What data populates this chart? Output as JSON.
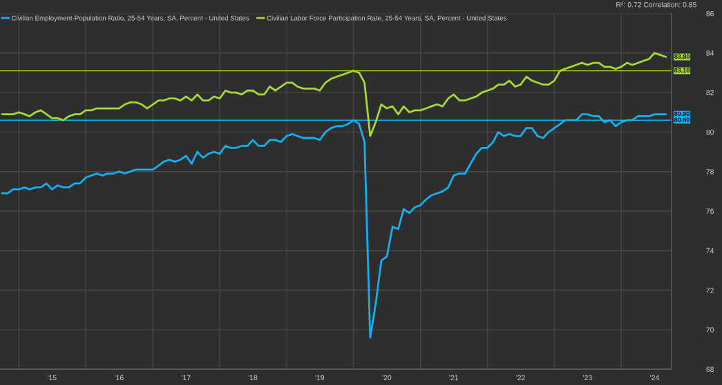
{
  "chart_data": {
    "type": "line",
    "x": [
      "2014-10",
      "2014-11",
      "2014-12",
      "2015-01",
      "2015-02",
      "2015-03",
      "2015-04",
      "2015-05",
      "2015-06",
      "2015-07",
      "2015-08",
      "2015-09",
      "2015-10",
      "2015-11",
      "2015-12",
      "2016-01",
      "2016-02",
      "2016-03",
      "2016-04",
      "2016-05",
      "2016-06",
      "2016-07",
      "2016-08",
      "2016-09",
      "2016-10",
      "2016-11",
      "2016-12",
      "2017-01",
      "2017-02",
      "2017-03",
      "2017-04",
      "2017-05",
      "2017-06",
      "2017-07",
      "2017-08",
      "2017-09",
      "2017-10",
      "2017-11",
      "2017-12",
      "2018-01",
      "2018-02",
      "2018-03",
      "2018-04",
      "2018-05",
      "2018-06",
      "2018-07",
      "2018-08",
      "2018-09",
      "2018-10",
      "2018-11",
      "2018-12",
      "2019-01",
      "2019-02",
      "2019-03",
      "2019-04",
      "2019-05",
      "2019-06",
      "2019-07",
      "2019-08",
      "2019-09",
      "2019-10",
      "2019-11",
      "2019-12",
      "2020-01",
      "2020-02",
      "2020-03",
      "2020-04",
      "2020-05",
      "2020-06",
      "2020-07",
      "2020-08",
      "2020-09",
      "2020-10",
      "2020-11",
      "2020-12",
      "2021-01",
      "2021-02",
      "2021-03",
      "2021-04",
      "2021-05",
      "2021-06",
      "2021-07",
      "2021-08",
      "2021-09",
      "2021-10",
      "2021-11",
      "2021-12",
      "2022-01",
      "2022-02",
      "2022-03",
      "2022-04",
      "2022-05",
      "2022-06",
      "2022-07",
      "2022-08",
      "2022-09",
      "2022-10",
      "2022-11",
      "2022-12",
      "2023-01",
      "2023-02",
      "2023-03",
      "2023-04",
      "2023-05",
      "2023-06",
      "2023-07",
      "2023-08",
      "2023-09",
      "2023-10",
      "2023-11",
      "2023-12",
      "2024-01",
      "2024-02",
      "2024-03",
      "2024-04",
      "2024-05",
      "2024-06",
      "2024-07",
      "2024-08",
      "2024-09"
    ],
    "xlim": [
      "2014-09-20",
      "2024-10-01"
    ],
    "xticks": [
      {
        "value": "2015-01",
        "label": null
      },
      {
        "value": "2015-07",
        "label": "'15"
      },
      {
        "value": "2016-01",
        "label": null
      },
      {
        "value": "2016-07",
        "label": "'16"
      },
      {
        "value": "2017-01",
        "label": null
      },
      {
        "value": "2017-07",
        "label": "'17"
      },
      {
        "value": "2018-01",
        "label": null
      },
      {
        "value": "2018-07",
        "label": "'18"
      },
      {
        "value": "2019-01",
        "label": null
      },
      {
        "value": "2019-07",
        "label": "'19"
      },
      {
        "value": "2020-01",
        "label": null
      },
      {
        "value": "2020-07",
        "label": "'20"
      },
      {
        "value": "2021-01",
        "label": null
      },
      {
        "value": "2021-07",
        "label": "'21"
      },
      {
        "value": "2022-01",
        "label": null
      },
      {
        "value": "2022-07",
        "label": "'22"
      },
      {
        "value": "2023-01",
        "label": null
      },
      {
        "value": "2023-07",
        "label": "'23"
      },
      {
        "value": "2024-01",
        "label": null
      },
      {
        "value": "2024-07",
        "label": "'24"
      }
    ],
    "ylim": [
      68,
      86
    ],
    "yticks": [
      68,
      70,
      72,
      74,
      76,
      78,
      80,
      82,
      84,
      86
    ],
    "grid": true,
    "legend": "top left",
    "annotations": [
      "R²: 0.72 Correlation: 0.85"
    ],
    "ref_lines": [
      {
        "axis": "y",
        "value": 83.1,
        "label": "83.10",
        "color": "#a6d937"
      },
      {
        "axis": "y",
        "value": 80.6,
        "label": "80.60",
        "color": "#13b1f2"
      }
    ],
    "series": [
      {
        "name": "Civilian Employment-Population Ratio, 25-54 Years, SA, Percent - United States",
        "color": "#13b1f2",
        "values": [
          76.9,
          76.9,
          77.1,
          77.1,
          77.2,
          77.1,
          77.2,
          77.2,
          77.4,
          77.1,
          77.3,
          77.2,
          77.2,
          77.4,
          77.4,
          77.7,
          77.8,
          77.9,
          77.8,
          77.9,
          77.9,
          78.0,
          77.9,
          78.0,
          78.1,
          78.1,
          78.1,
          78.1,
          78.3,
          78.5,
          78.6,
          78.5,
          78.6,
          78.8,
          78.4,
          79.0,
          78.7,
          78.9,
          79.0,
          78.9,
          79.3,
          79.2,
          79.2,
          79.3,
          79.3,
          79.6,
          79.3,
          79.3,
          79.6,
          79.6,
          79.5,
          79.8,
          79.9,
          79.8,
          79.7,
          79.7,
          79.7,
          79.6,
          80.0,
          80.2,
          80.3,
          80.3,
          80.4,
          80.6,
          80.4,
          79.5,
          69.6,
          71.3,
          73.5,
          73.7,
          75.2,
          75.1,
          76.1,
          75.9,
          76.2,
          76.3,
          76.6,
          76.8,
          76.9,
          77.0,
          77.2,
          77.8,
          77.9,
          77.9,
          78.4,
          78.9,
          79.2,
          79.2,
          79.5,
          80.0,
          79.8,
          79.9,
          79.8,
          79.8,
          80.2,
          80.2,
          79.8,
          79.7,
          80.0,
          80.2,
          80.4,
          80.6,
          80.6,
          80.6,
          80.9,
          80.9,
          80.8,
          80.8,
          80.5,
          80.6,
          80.3,
          80.5,
          80.6,
          80.6,
          80.8,
          80.8,
          80.8,
          80.9,
          80.9,
          80.9
        ],
        "value_labels": [
          null,
          null,
          null,
          null,
          null,
          null,
          null,
          null,
          null,
          null,
          null,
          null,
          null,
          null,
          null,
          null,
          null,
          null,
          null,
          null,
          null,
          null,
          null,
          null,
          null,
          null,
          null,
          null,
          null,
          null,
          null,
          null,
          null,
          null,
          null,
          null,
          null,
          null,
          null,
          null,
          null,
          null,
          null,
          null,
          null,
          null,
          null,
          null,
          null,
          null,
          null,
          null,
          null,
          null,
          null,
          null,
          null,
          null,
          null,
          null,
          null,
          null,
          null,
          null,
          null,
          null,
          null,
          null,
          null,
          null,
          null,
          null,
          null,
          null,
          null,
          null,
          null,
          null,
          null,
          null,
          null,
          null,
          null,
          null,
          null,
          null,
          null,
          null,
          null,
          null,
          null,
          null,
          null,
          null,
          null,
          null,
          null,
          null,
          null,
          null,
          null,
          null,
          null,
          null,
          null,
          null,
          null,
          null,
          null,
          null,
          null,
          null,
          null,
          null,
          null,
          null,
          null,
          null,
          null,
          "80.90"
        ]
      },
      {
        "name": "Civilian Labor Force Participation Rate, 25-54 Years, SA, Percent - United States",
        "color": "#a6d937",
        "values": [
          80.9,
          80.9,
          80.9,
          81.0,
          80.9,
          80.8,
          81.0,
          81.1,
          80.9,
          80.7,
          80.7,
          80.6,
          80.8,
          80.9,
          80.9,
          81.1,
          81.1,
          81.2,
          81.2,
          81.2,
          81.2,
          81.2,
          81.4,
          81.5,
          81.5,
          81.4,
          81.2,
          81.4,
          81.6,
          81.6,
          81.7,
          81.7,
          81.6,
          81.8,
          81.6,
          81.9,
          81.6,
          81.6,
          81.8,
          81.7,
          82.1,
          82.0,
          82.0,
          81.9,
          82.1,
          82.1,
          81.9,
          81.9,
          82.3,
          82.1,
          82.3,
          82.5,
          82.5,
          82.3,
          82.2,
          82.2,
          82.2,
          82.1,
          82.5,
          82.7,
          82.8,
          82.9,
          83.0,
          83.1,
          83.0,
          82.5,
          79.8,
          80.5,
          81.4,
          81.2,
          81.3,
          80.9,
          81.3,
          81.0,
          81.1,
          81.1,
          81.2,
          81.3,
          81.4,
          81.3,
          81.7,
          81.9,
          81.6,
          81.6,
          81.7,
          81.8,
          82.0,
          82.1,
          82.2,
          82.4,
          82.4,
          82.6,
          82.3,
          82.4,
          82.8,
          82.6,
          82.5,
          82.4,
          82.4,
          82.6,
          83.1,
          83.2,
          83.3,
          83.4,
          83.5,
          83.4,
          83.5,
          83.5,
          83.3,
          83.3,
          83.2,
          83.3,
          83.5,
          83.4,
          83.5,
          83.6,
          83.7,
          84.0,
          83.9,
          83.8
        ],
        "value_labels": [
          null,
          null,
          null,
          null,
          null,
          null,
          null,
          null,
          null,
          null,
          null,
          null,
          null,
          null,
          null,
          null,
          null,
          null,
          null,
          null,
          null,
          null,
          null,
          null,
          null,
          null,
          null,
          null,
          null,
          null,
          null,
          null,
          null,
          null,
          null,
          null,
          null,
          null,
          null,
          null,
          null,
          null,
          null,
          null,
          null,
          null,
          null,
          null,
          null,
          null,
          null,
          null,
          null,
          null,
          null,
          null,
          null,
          null,
          null,
          null,
          null,
          null,
          null,
          null,
          null,
          null,
          null,
          null,
          null,
          null,
          null,
          null,
          null,
          null,
          null,
          null,
          null,
          null,
          null,
          null,
          null,
          null,
          null,
          null,
          null,
          null,
          null,
          null,
          null,
          null,
          null,
          null,
          null,
          null,
          null,
          null,
          null,
          null,
          null,
          null,
          null,
          null,
          null,
          null,
          null,
          null,
          null,
          null,
          null,
          null,
          null,
          null,
          null,
          null,
          null,
          null,
          null,
          null,
          null,
          "83.80"
        ]
      }
    ]
  }
}
